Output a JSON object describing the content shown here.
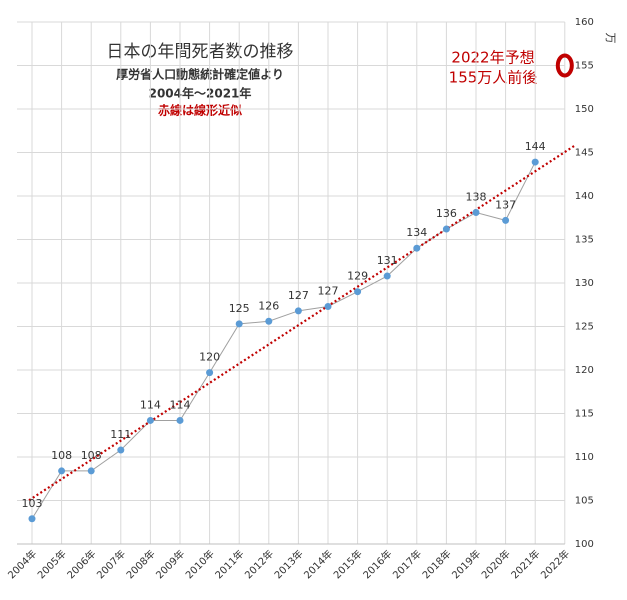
{
  "chart_data": {
    "type": "line",
    "title": "日本の年間死者数の推移",
    "subtitles": [
      "厚労省人口動態統計確定値より",
      "2004年〜2021年"
    ],
    "trend_note": "赤線は線形近似",
    "annotations": [
      "2022年予想",
      "155万人前後"
    ],
    "forecast": 155,
    "y_label": "万",
    "categories": [
      "2004年",
      "2005年",
      "2006年",
      "2007年",
      "2008年",
      "2009年",
      "2010年",
      "2011年",
      "2012年",
      "2013年",
      "2014年",
      "2015年",
      "2016年",
      "2017年",
      "2018年",
      "2019年",
      "2020年",
      "2021年",
      "2022年"
    ],
    "series": [
      {
        "color": "#5b9bd5",
        "line_color": "#a0a0a0",
        "values": [
          102.9,
          108.4,
          108.4,
          110.8,
          114.2,
          114.2,
          119.7,
          125.3,
          125.6,
          126.8,
          127.3,
          129.0,
          130.8,
          134.0,
          136.2,
          138.1,
          137.2,
          143.9,
          null
        ],
        "value_labels": [
          "103",
          "108",
          "108",
          "111",
          "114",
          "114",
          "120",
          "125",
          "126",
          "127",
          "127",
          "129",
          "131",
          "134",
          "136",
          "138",
          "137",
          "144",
          null
        ]
      }
    ],
    "trend_color": "#c00000",
    "annotation_color": "#c00000",
    "ylim": [
      100,
      160
    ],
    "yticks": [
      100,
      105,
      110,
      115,
      120,
      125,
      130,
      135,
      140,
      145,
      150,
      155,
      160
    ],
    "y_axis_side": "right",
    "grid": true
  }
}
